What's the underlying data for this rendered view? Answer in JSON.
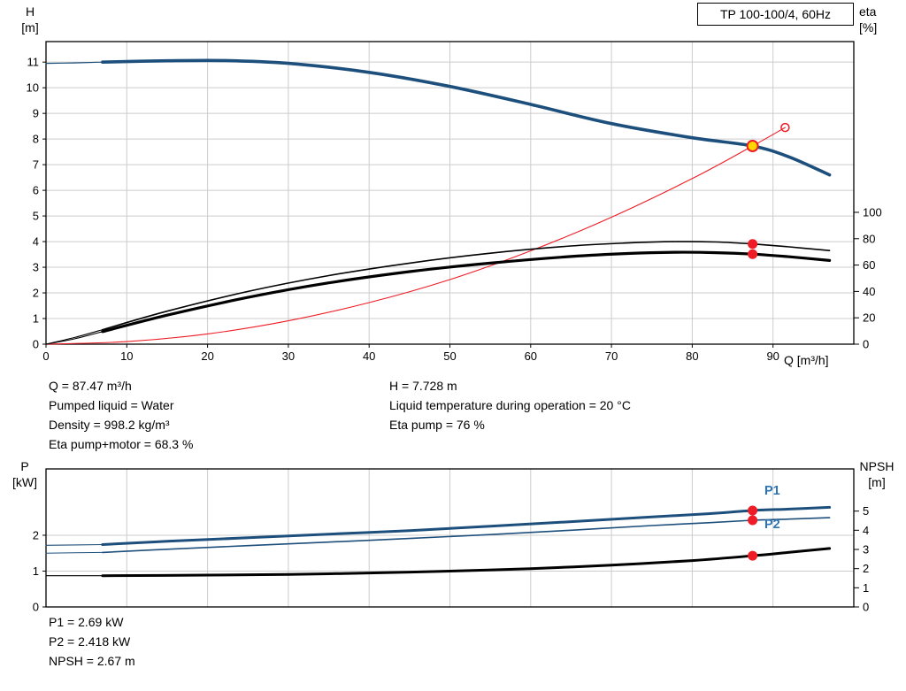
{
  "title_box": {
    "label": "TP 100-100/4, 60Hz"
  },
  "axis_corner_labels": {
    "top_left_line1": "H",
    "top_left_line2": "[m]",
    "top_right_line1": "eta",
    "top_right_line2": "[%]",
    "x_axis": "Q [m³/h]",
    "bottom_left_line1": "P",
    "bottom_left_line2": "[kW]",
    "bottom_right_line1": "NPSH",
    "bottom_right_line2": "[m]"
  },
  "series_labels": {
    "p1": "P1",
    "p2": "P2"
  },
  "info_top": {
    "col1": [
      "Q = 87.47 m³/h",
      "Pumped liquid = Water",
      "Density = 998.2 kg/m³",
      "Eta pump+motor = 68.3 %"
    ],
    "col2": [
      "H = 7.728 m",
      "Liquid temperature during operation = 20 °C",
      "Eta pump = 76 %"
    ]
  },
  "info_bottom": [
    "P1 = 2.69 kW",
    "P2 = 2.418 kW",
    "NPSH = 2.67 m"
  ],
  "colors": {
    "curve_blue": "#1d4f7c",
    "label_blue": "#2d74b5",
    "red": "#ee1c25",
    "black": "#000000",
    "grid": "#cccccc",
    "duty_yellow": "#ffd700"
  },
  "duty_point": {
    "Q": 87.47,
    "H": 7.728,
    "eta_pump": 76,
    "eta_pump_motor": 68.3,
    "P1": 2.69,
    "P2": 2.418,
    "NPSH": 2.67
  },
  "chart_data": [
    {
      "name": "qh-eta-chart",
      "type": "line",
      "title": "TP 100-100/4, 60Hz",
      "xlabel": "Q [m³/h]",
      "ylabel_left": "H [m]",
      "ylabel_right": "eta [%]",
      "xlim": [
        0,
        100
      ],
      "x_ticks": [
        0,
        10,
        20,
        30,
        40,
        50,
        60,
        70,
        80,
        90
      ],
      "x_tick_labels": true,
      "ylim_left": [
        0,
        11.8
      ],
      "y_ticks_left": [
        0,
        1,
        2,
        3,
        4,
        5,
        6,
        7,
        8,
        9,
        10,
        11
      ],
      "ylim_right": [
        0,
        229.5
      ],
      "y_ticks_right": [
        0,
        20,
        40,
        60,
        80,
        100
      ],
      "grid": true,
      "series": [
        {
          "name": "head-curve-lead",
          "axis": "left",
          "color": "curve_blue",
          "width": 1.2,
          "points": [
            [
              0,
              10.95
            ],
            [
              3.5,
              10.97
            ],
            [
              7,
              11.0
            ]
          ]
        },
        {
          "name": "head-curve",
          "axis": "left",
          "color": "curve_blue",
          "width": 3.6,
          "points": [
            [
              7,
              11.0
            ],
            [
              15,
              11.05
            ],
            [
              22,
              11.06
            ],
            [
              30,
              10.95
            ],
            [
              40,
              10.6
            ],
            [
              50,
              10.05
            ],
            [
              60,
              9.35
            ],
            [
              70,
              8.6
            ],
            [
              80,
              8.05
            ],
            [
              87.47,
              7.728
            ],
            [
              92,
              7.3
            ],
            [
              97,
              6.6
            ]
          ]
        },
        {
          "name": "system-curve",
          "axis": "left",
          "color": "red",
          "width": 1.1,
          "points": [
            [
              0,
              0
            ],
            [
              10,
              0.1
            ],
            [
              20,
              0.4
            ],
            [
              30,
              0.91
            ],
            [
              40,
              1.62
            ],
            [
              50,
              2.52
            ],
            [
              60,
              3.64
            ],
            [
              70,
              4.95
            ],
            [
              80,
              6.46
            ],
            [
              87.47,
              7.728
            ],
            [
              91.5,
              8.45
            ]
          ]
        },
        {
          "name": "eta-pump-curve-lead",
          "axis": "right",
          "color": "black",
          "width": 1.1,
          "points": [
            [
              0,
              0
            ],
            [
              3.5,
              5
            ],
            [
              7,
              11
            ]
          ]
        },
        {
          "name": "eta-pump-curve",
          "axis": "right",
          "color": "black",
          "width": 1.6,
          "points": [
            [
              7,
              11
            ],
            [
              15,
              25
            ],
            [
              25,
              40
            ],
            [
              35,
              52
            ],
            [
              45,
              61.5
            ],
            [
              55,
              69
            ],
            [
              65,
              74.5
            ],
            [
              72,
              76.8
            ],
            [
              78,
              77.8
            ],
            [
              83,
              77.5
            ],
            [
              87.47,
              76
            ],
            [
              92,
              73.8
            ],
            [
              97,
              71
            ]
          ]
        },
        {
          "name": "eta-pump-motor-curve-lead",
          "axis": "right",
          "color": "black",
          "width": 1.1,
          "points": [
            [
              0,
              0
            ],
            [
              3.5,
              4
            ],
            [
              7,
              9.5
            ]
          ]
        },
        {
          "name": "eta-pump-motor-curve",
          "axis": "right",
          "color": "black",
          "width": 3.2,
          "points": [
            [
              7,
              9.5
            ],
            [
              15,
              22
            ],
            [
              25,
              35.5
            ],
            [
              35,
              46.5
            ],
            [
              45,
              55
            ],
            [
              55,
              61.5
            ],
            [
              65,
              66.5
            ],
            [
              72,
              68.8
            ],
            [
              78,
              69.7
            ],
            [
              83,
              69.4
            ],
            [
              87.47,
              68.3
            ],
            [
              92,
              66.3
            ],
            [
              97,
              63.5
            ]
          ]
        }
      ],
      "markers": [
        {
          "name": "eta-pump-point",
          "axis": "right",
          "q": 87.47,
          "v": 76,
          "r": 5.5,
          "fill": "red"
        },
        {
          "name": "eta-pump-motor-point",
          "axis": "right",
          "q": 87.47,
          "v": 68.3,
          "r": 5.5,
          "fill": "red"
        },
        {
          "name": "system-curve-end-marker",
          "axis": "left",
          "q": 91.5,
          "v": 8.45,
          "r": 4.5,
          "fill": "none",
          "stroke": "red",
          "sw": 1.5
        },
        {
          "name": "duty-point-marker",
          "axis": "left",
          "q": 87.47,
          "v": 7.728,
          "r": 6,
          "fill": "duty_yellow",
          "stroke": "red",
          "sw": 2
        }
      ]
    },
    {
      "name": "power-npsh-chart",
      "type": "line",
      "title": "",
      "xlabel": "Q [m³/h]",
      "ylabel_left": "P [kW]",
      "ylabel_right": "NPSH [m]",
      "xlim": [
        0,
        100
      ],
      "x_ticks": [
        0,
        10,
        20,
        30,
        40,
        50,
        60,
        70,
        80,
        90
      ],
      "x_tick_labels": false,
      "ylim_left": [
        0,
        3.85
      ],
      "y_ticks_left": [
        0,
        1,
        2
      ],
      "ylim_right": [
        0,
        7.2
      ],
      "y_ticks_right": [
        0,
        1,
        2,
        3,
        4,
        5
      ],
      "grid": true,
      "series": [
        {
          "name": "p1-curve-lead",
          "axis": "left",
          "color": "curve_blue",
          "width": 1.1,
          "points": [
            [
              0,
              1.72
            ],
            [
              7,
              1.74
            ]
          ]
        },
        {
          "name": "p1-curve",
          "axis": "left",
          "color": "curve_blue",
          "width": 3,
          "points": [
            [
              7,
              1.74
            ],
            [
              15,
              1.83
            ],
            [
              25,
              1.93
            ],
            [
              35,
              2.03
            ],
            [
              45,
              2.13
            ],
            [
              55,
              2.25
            ],
            [
              65,
              2.38
            ],
            [
              75,
              2.51
            ],
            [
              82,
              2.6
            ],
            [
              87.47,
              2.69
            ],
            [
              92,
              2.73
            ],
            [
              97,
              2.78
            ]
          ]
        },
        {
          "name": "p2-curve-lead",
          "axis": "left",
          "color": "curve_blue",
          "width": 1,
          "points": [
            [
              0,
              1.5
            ],
            [
              7,
              1.52
            ]
          ]
        },
        {
          "name": "p2-curve",
          "axis": "left",
          "color": "curve_blue",
          "width": 1.6,
          "points": [
            [
              7,
              1.52
            ],
            [
              15,
              1.61
            ],
            [
              25,
              1.71
            ],
            [
              35,
              1.81
            ],
            [
              45,
              1.91
            ],
            [
              55,
              2.02
            ],
            [
              65,
              2.14
            ],
            [
              75,
              2.27
            ],
            [
              82,
              2.35
            ],
            [
              87.47,
              2.418
            ],
            [
              92,
              2.45
            ],
            [
              97,
              2.49
            ]
          ]
        },
        {
          "name": "npsh-curve-lead",
          "axis": "right",
          "color": "black",
          "width": 1.1,
          "points": [
            [
              0,
              1.63
            ],
            [
              7,
              1.63
            ]
          ]
        },
        {
          "name": "npsh-curve",
          "axis": "right",
          "color": "black",
          "width": 3,
          "points": [
            [
              7,
              1.63
            ],
            [
              20,
              1.66
            ],
            [
              30,
              1.7
            ],
            [
              40,
              1.77
            ],
            [
              50,
              1.87
            ],
            [
              60,
              2.0
            ],
            [
              70,
              2.18
            ],
            [
              80,
              2.42
            ],
            [
              87.47,
              2.67
            ],
            [
              92,
              2.85
            ],
            [
              97,
              3.05
            ]
          ]
        }
      ],
      "markers": [
        {
          "name": "p1-point",
          "axis": "left",
          "q": 87.47,
          "v": 2.69,
          "r": 5.5,
          "fill": "red"
        },
        {
          "name": "p2-point",
          "axis": "left",
          "q": 87.47,
          "v": 2.418,
          "r": 5.5,
          "fill": "red"
        },
        {
          "name": "npsh-point",
          "axis": "right",
          "q": 87.47,
          "v": 2.67,
          "r": 5.5,
          "fill": "red"
        }
      ]
    }
  ]
}
